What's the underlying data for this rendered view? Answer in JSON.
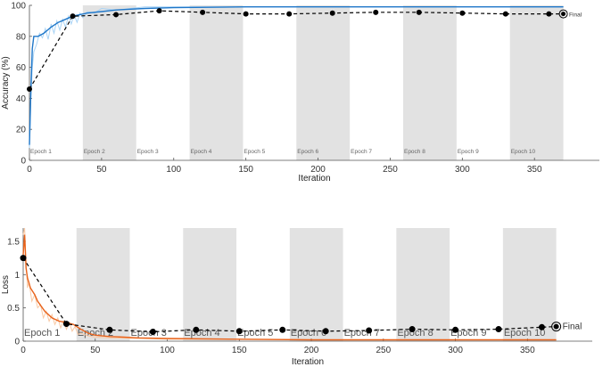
{
  "chart_data": [
    {
      "type": "line",
      "ylabel": "Accuracy (%)",
      "xlabel": "Iteration",
      "xlim": [
        0,
        395
      ],
      "ylim": [
        0,
        100
      ],
      "xticks": [
        "0",
        "50",
        "100",
        "150",
        "200",
        "250",
        "300",
        "350"
      ],
      "yticks": [
        "0",
        "20",
        "40",
        "60",
        "80",
        "100"
      ],
      "grid": false,
      "colors": {
        "training": "#1f77c9",
        "training_raw": "#a9d3f5",
        "validation": "#000000",
        "band": "#e2e2e2"
      },
      "epochs": [
        {
          "label": "Epoch 1",
          "start": 0,
          "end": 37
        },
        {
          "label": "Epoch 2",
          "start": 37,
          "end": 74
        },
        {
          "label": "Epoch 3",
          "start": 74,
          "end": 111
        },
        {
          "label": "Epoch 4",
          "start": 111,
          "end": 148
        },
        {
          "label": "Epoch 5",
          "start": 148,
          "end": 185
        },
        {
          "label": "Epoch 6",
          "start": 185,
          "end": 222
        },
        {
          "label": "Epoch 7",
          "start": 222,
          "end": 259
        },
        {
          "label": "Epoch 8",
          "start": 259,
          "end": 296
        },
        {
          "label": "Epoch 9",
          "start": 296,
          "end": 333
        },
        {
          "label": "Epoch 10",
          "start": 333,
          "end": 370
        }
      ],
      "series": [
        {
          "role": "training_raw",
          "x": [
            0,
            1,
            2,
            3,
            5,
            7,
            9,
            11,
            13,
            15,
            17,
            19,
            21,
            23,
            25,
            27,
            29,
            31,
            33,
            35,
            37,
            40,
            45,
            50,
            60,
            80,
            100,
            150,
            200,
            250,
            300,
            350,
            370
          ],
          "values": [
            8,
            40,
            60,
            70,
            75,
            82,
            79,
            85,
            78,
            88,
            82,
            90,
            84,
            91,
            86,
            93,
            88,
            94,
            89,
            95,
            92,
            96,
            95,
            98,
            97,
            99,
            99,
            99,
            99,
            99,
            99,
            99,
            99
          ]
        },
        {
          "role": "training",
          "x": [
            0,
            1,
            2,
            3,
            4,
            6,
            8,
            10,
            15,
            20,
            25,
            30,
            35,
            40,
            50,
            60,
            70,
            80,
            100,
            150,
            200,
            250,
            300,
            350,
            370
          ],
          "values": [
            10,
            45,
            72,
            80,
            80,
            80,
            81,
            82,
            86,
            89,
            91,
            93,
            94,
            95,
            96,
            97,
            97.5,
            98,
            98.5,
            99,
            99,
            99,
            99,
            99,
            99
          ]
        },
        {
          "role": "validation",
          "x": [
            0,
            30,
            60,
            90,
            120,
            150,
            180,
            210,
            240,
            270,
            300,
            330,
            360,
            370
          ],
          "values": [
            46,
            93,
            94,
            96.5,
            95.5,
            94.5,
            94.5,
            95,
            95.5,
            95.5,
            95,
            94.5,
            94.5,
            94.5
          ]
        }
      ],
      "final_label": "Final"
    },
    {
      "type": "line",
      "ylabel": "Loss",
      "xlabel": "Iteration",
      "xlim": [
        0,
        395
      ],
      "ylim": [
        0,
        1.7
      ],
      "xticks": [
        "0",
        "50",
        "100",
        "150",
        "200",
        "250",
        "300",
        "350"
      ],
      "yticks": [
        "0",
        "0.5",
        "1",
        "1.5"
      ],
      "grid": false,
      "colors": {
        "training": "#e8621a",
        "training_raw": "#f9c9a4",
        "validation": "#000000",
        "band": "#e2e2e2"
      },
      "epochs": [
        {
          "label": "Epoch 1",
          "start": 0,
          "end": 37
        },
        {
          "label": "Epoch 2",
          "start": 37,
          "end": 74
        },
        {
          "label": "Epoch 3",
          "start": 74,
          "end": 111
        },
        {
          "label": "Epoch 4",
          "start": 111,
          "end": 148
        },
        {
          "label": "Epoch 5",
          "start": 148,
          "end": 185
        },
        {
          "label": "Epoch 6",
          "start": 185,
          "end": 222
        },
        {
          "label": "Epoch 7",
          "start": 222,
          "end": 259
        },
        {
          "label": "Epoch 8",
          "start": 259,
          "end": 296
        },
        {
          "label": "Epoch 9",
          "start": 296,
          "end": 333
        },
        {
          "label": "Epoch 10",
          "start": 333,
          "end": 370
        }
      ],
      "series": [
        {
          "role": "training_raw",
          "x": [
            0,
            1,
            2,
            3,
            4,
            6,
            8,
            10,
            12,
            14,
            16,
            18,
            20,
            22,
            24,
            26,
            28,
            30,
            32,
            34,
            36,
            38,
            40,
            45,
            50,
            60,
            80,
            100,
            150,
            200,
            250,
            300,
            350,
            370
          ],
          "values": [
            1.6,
            1.7,
            1.2,
            0.8,
            0.9,
            0.6,
            0.7,
            0.5,
            0.55,
            0.35,
            0.45,
            0.3,
            0.4,
            0.25,
            0.35,
            0.2,
            0.3,
            0.18,
            0.28,
            0.15,
            0.22,
            0.1,
            0.12,
            0.08,
            0.06,
            0.05,
            0.04,
            0.03,
            0.03,
            0.02,
            0.02,
            0.02,
            0.02,
            0.02
          ]
        },
        {
          "role": "training",
          "x": [
            0,
            1,
            2,
            3,
            5,
            8,
            10,
            15,
            20,
            25,
            30,
            35,
            40,
            45,
            50,
            60,
            70,
            80,
            100,
            150,
            200,
            250,
            300,
            350,
            370
          ],
          "values": [
            1.3,
            1.6,
            1.1,
            0.95,
            0.8,
            0.7,
            0.6,
            0.45,
            0.35,
            0.3,
            0.28,
            0.25,
            0.18,
            0.12,
            0.09,
            0.07,
            0.06,
            0.05,
            0.04,
            0.03,
            0.02,
            0.02,
            0.02,
            0.02,
            0.02
          ]
        },
        {
          "role": "validation",
          "x": [
            0,
            30,
            60,
            90,
            120,
            150,
            180,
            210,
            240,
            270,
            300,
            330,
            360,
            370
          ],
          "values": [
            1.25,
            0.26,
            0.17,
            0.14,
            0.17,
            0.15,
            0.17,
            0.15,
            0.16,
            0.18,
            0.17,
            0.18,
            0.21,
            0.22
          ]
        }
      ],
      "final_label": "Final"
    }
  ]
}
